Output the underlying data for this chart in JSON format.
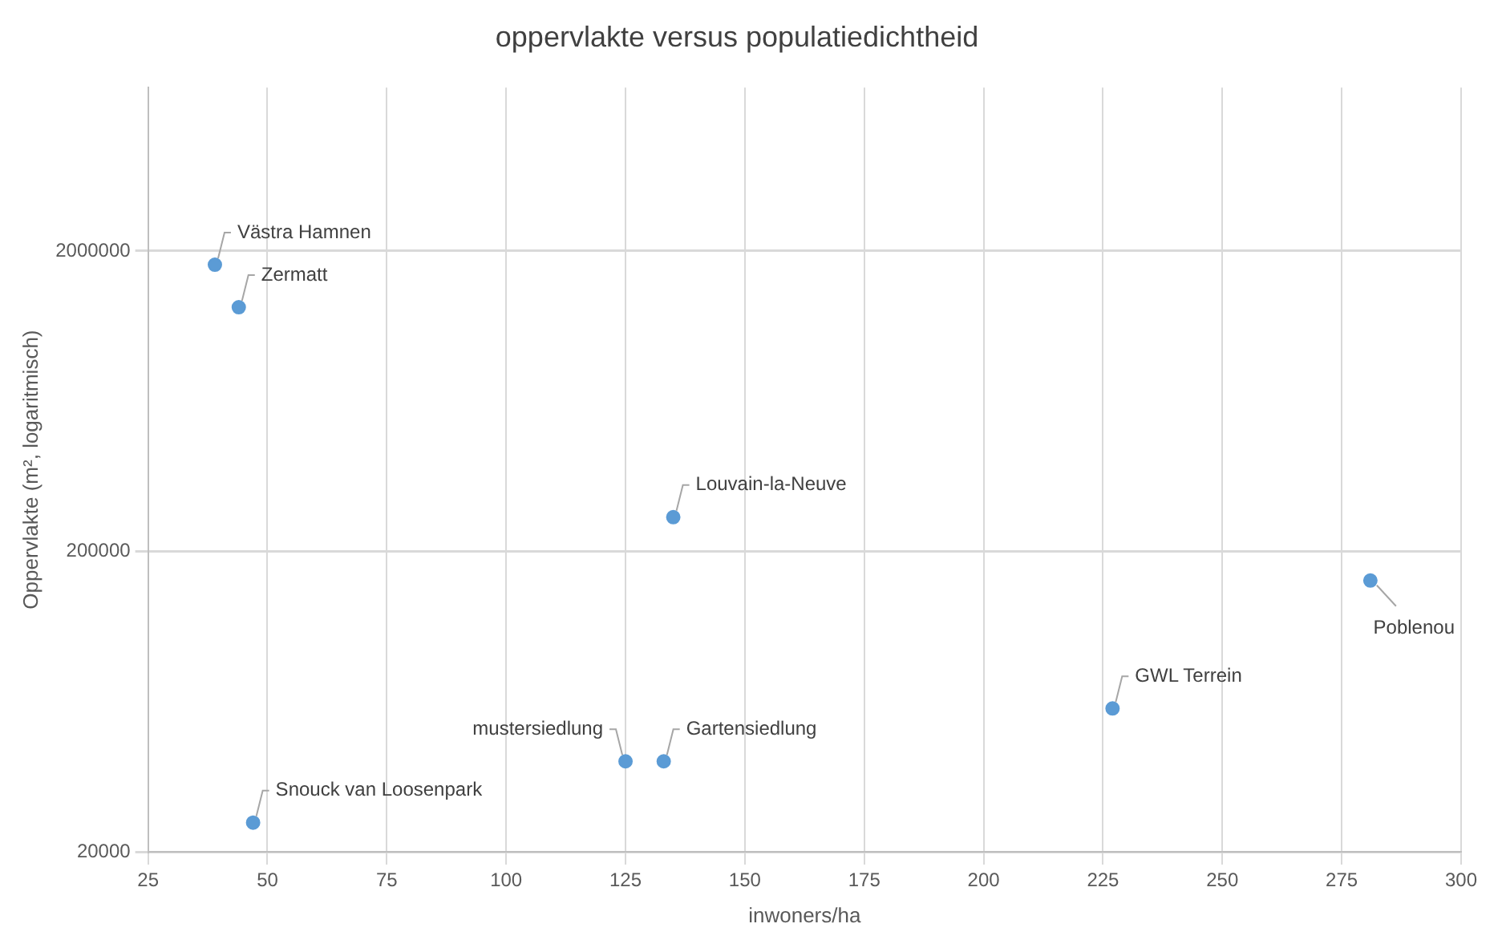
{
  "chart_data": {
    "type": "scatter",
    "title": "oppervlakte versus populatiedichtheid",
    "xlabel": "inwoners/ha",
    "ylabel": "Oppervlakte (m², logaritmisch)",
    "x": [
      39,
      44,
      135,
      281,
      227,
      125,
      133,
      47
    ],
    "series": [
      {
        "color": "#5b9bd5",
        "values": [
          1800000,
          1300000,
          260000,
          160000,
          60000,
          40000,
          40000,
          25000
        ]
      }
    ],
    "annotations": [
      {
        "text": "Västra Hamnen",
        "x": 39,
        "y": 1800000
      },
      {
        "text": "Zermatt",
        "x": 44,
        "y": 1300000
      },
      {
        "text": "Louvain-la-Neuve",
        "x": 135,
        "y": 260000
      },
      {
        "text": "Poblenou",
        "x": 281,
        "y": 160000
      },
      {
        "text": "GWL Terrein",
        "x": 227,
        "y": 60000
      },
      {
        "text": "mustersiedlung",
        "x": 125,
        "y": 40000
      },
      {
        "text": "Gartensiedlung",
        "x": 133,
        "y": 40000
      },
      {
        "text": "Snouck van Loosenpark",
        "x": 47,
        "y": 25000
      }
    ],
    "xlim": [
      25,
      300
    ],
    "xticks": [
      25,
      50,
      75,
      100,
      125,
      150,
      175,
      200,
      225,
      250,
      275,
      300
    ],
    "ylim": [
      20000,
      7000000
    ],
    "yticks": [
      20000,
      200000,
      2000000
    ],
    "log": "y",
    "grid": true,
    "marker": "circle",
    "legend": false
  }
}
